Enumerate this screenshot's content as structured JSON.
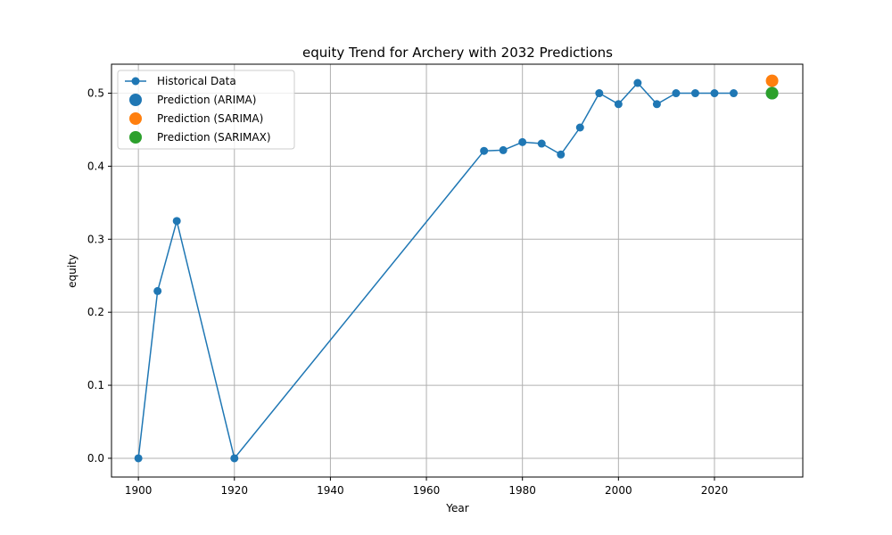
{
  "chart_data": {
    "type": "line",
    "title": "equity Trend for Archery with 2032 Predictions",
    "xlabel": "Year",
    "ylabel": "equity",
    "xlim": [
      1894.4,
      2038.4
    ],
    "ylim": [
      -0.0257,
      0.5397
    ],
    "x_ticks": [
      1900,
      1920,
      1940,
      1960,
      1980,
      2000,
      2020
    ],
    "y_ticks": [
      0.0,
      0.1,
      0.2,
      0.3,
      0.4,
      0.5
    ],
    "grid": true,
    "legend_position": "upper-left",
    "series": [
      {
        "name": "Historical Data",
        "kind": "line-marker",
        "color": "#1f77b4",
        "x": [
          1900,
          1904,
          1908,
          1920,
          1972,
          1976,
          1980,
          1984,
          1988,
          1992,
          1996,
          2000,
          2004,
          2008,
          2012,
          2016,
          2020,
          2024
        ],
        "y": [
          0.0,
          0.229,
          0.325,
          0.0,
          0.421,
          0.422,
          0.433,
          0.431,
          0.416,
          0.453,
          0.5,
          0.485,
          0.514,
          0.485,
          0.5,
          0.5,
          0.5,
          0.5
        ]
      },
      {
        "name": "Prediction (ARIMA)",
        "kind": "point",
        "color": "#1f77b4",
        "x": [
          2032
        ],
        "y": [
          0.5
        ]
      },
      {
        "name": "Prediction (SARIMA)",
        "kind": "point",
        "color": "#ff7f0e",
        "x": [
          2032
        ],
        "y": [
          0.517
        ]
      },
      {
        "name": "Prediction (SARIMAX)",
        "kind": "point",
        "color": "#2ca02c",
        "x": [
          2032
        ],
        "y": [
          0.5
        ]
      }
    ]
  }
}
